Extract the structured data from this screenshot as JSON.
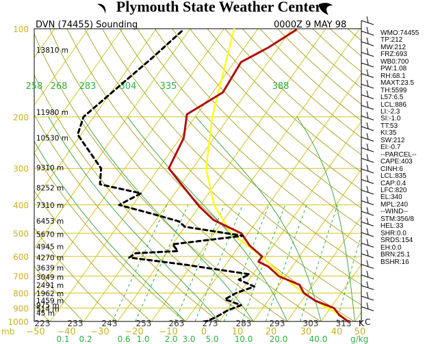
{
  "page_title": "Plymouth State Weather Center",
  "chart_data": {
    "type": "line",
    "header_left": "DVN (74455) Sounding",
    "header_right": "0000Z  9 MAY 98",
    "ylabel": "mb",
    "xlabel_mixing": "g/kg",
    "temp_unit": "C",
    "theta_unit": "K",
    "pressure_ticks": [
      100,
      200,
      300,
      400,
      500,
      600,
      700,
      800,
      900,
      1000
    ],
    "height_labels": [
      {
        "p": 118,
        "label": "13810 m"
      },
      {
        "p": 193,
        "label": "11980 m"
      },
      {
        "p": 236,
        "label": "10530 m"
      },
      {
        "p": 298,
        "label": "9310 m"
      },
      {
        "p": 349,
        "label": "8252 m"
      },
      {
        "p": 401,
        "label": "7310 m"
      },
      {
        "p": 453,
        "label": "6453 m"
      },
      {
        "p": 504,
        "label": "5670 m"
      },
      {
        "p": 555,
        "label": "4945 m"
      },
      {
        "p": 605,
        "label": "4270 m"
      },
      {
        "p": 655,
        "label": "3639 m"
      },
      {
        "p": 704,
        "label": "3049 m"
      },
      {
        "p": 752,
        "label": "2491 m"
      },
      {
        "p": 801,
        "label": "1962 m"
      },
      {
        "p": 849,
        "label": "1459 m"
      },
      {
        "p": 880,
        "label": "975 m"
      },
      {
        "p": 905,
        "label": "514 m"
      },
      {
        "p": 935,
        "label": "45 m"
      }
    ],
    "temp_ticks": [
      -50,
      -40,
      -30,
      -20,
      -10,
      0,
      10,
      20,
      30,
      40,
      50
    ],
    "mixing_ratio_ticks": [
      "0.1",
      "0.2",
      "0.6",
      "1.0",
      "2.0",
      "3.0",
      "5.0",
      "10.0",
      "20.0",
      "40.0"
    ],
    "theta_ticks_bottom": [
      "223",
      "233",
      "243",
      "253",
      "263",
      "273",
      "283",
      "293",
      "303",
      "313"
    ],
    "theta_ticks_top": [
      "258",
      "268",
      "283",
      "304",
      "335",
      "388"
    ],
    "series": [
      {
        "name": "temperature",
        "p": [
          101,
          116,
          130,
          165,
          196,
          236,
          300,
          352,
          405,
          450,
          500,
          550,
          600,
          625,
          650,
          700,
          750,
          800,
          850,
          900,
          950,
          1000
        ],
        "t": [
          -48.5,
          -53,
          -58,
          -57,
          -63,
          -59,
          -57,
          -48,
          -40,
          -33,
          -22,
          -17,
          -11,
          -11,
          -7,
          -2,
          6,
          9,
          14,
          21,
          24,
          28
        ]
      },
      {
        "name": "dewpoint",
        "p": [
          102,
          125,
          200,
          230,
          300,
          340,
          365,
          400,
          430,
          455,
          475,
          510,
          545,
          575,
          585,
          605,
          640,
          690,
          720,
          760,
          800,
          840,
          880,
          920,
          970,
          1000
        ],
        "t": [
          -82,
          -85,
          -93,
          -91,
          -77,
          -74,
          -60,
          -64,
          -52,
          -43,
          -40,
          -21,
          -40,
          -37,
          -49,
          -50,
          -32,
          -11,
          -13,
          -7,
          -11,
          -13,
          -7,
          -10,
          -12,
          -14
        ]
      },
      {
        "name": "parcel",
        "p": [
          100,
          200,
          300,
          400,
          500,
          600,
          700,
          800,
          900,
          945,
          1000
        ],
        "t": [
          -67,
          -55,
          -46,
          -36,
          -25,
          -11,
          -1,
          9,
          19,
          24,
          28
        ]
      }
    ]
  },
  "index_list": [
    "WMO:74455",
    "TP:212",
    "MW:212",
    "FRZ:693",
    "WB0:700",
    "PW:1.08",
    "RH:68.1",
    "MAXT:23.5",
    "TH:5599",
    "L57:6.5",
    "LCL:886",
    "LI:-2.3",
    "SI:-1.0",
    "TT:53",
    "KI:35",
    "SW:212",
    "EI:-0.7",
    "--PARCEL--",
    "CAPE:403",
    "CINH:6",
    "LCL:835",
    "CAP:0.4",
    "LFC:820",
    "EL:340",
    "MPL:240",
    "--WIND--",
    "STM:356/8",
    "HEL:33",
    "SHR:0.0",
    "SRDS:154",
    "EH:0.0",
    "BRN:25.1",
    "BSHR:16"
  ],
  "colors": {
    "isotherm": "#d2c31a",
    "dry_adiabat": "#ada630",
    "moist_adiabat": "#42a64a",
    "mixing_ratio": "#2fae42",
    "temperature": "#b00d0d",
    "dewpoint": "#000000",
    "parcel": "#ffff1a",
    "axis_label": "#c9b021"
  }
}
